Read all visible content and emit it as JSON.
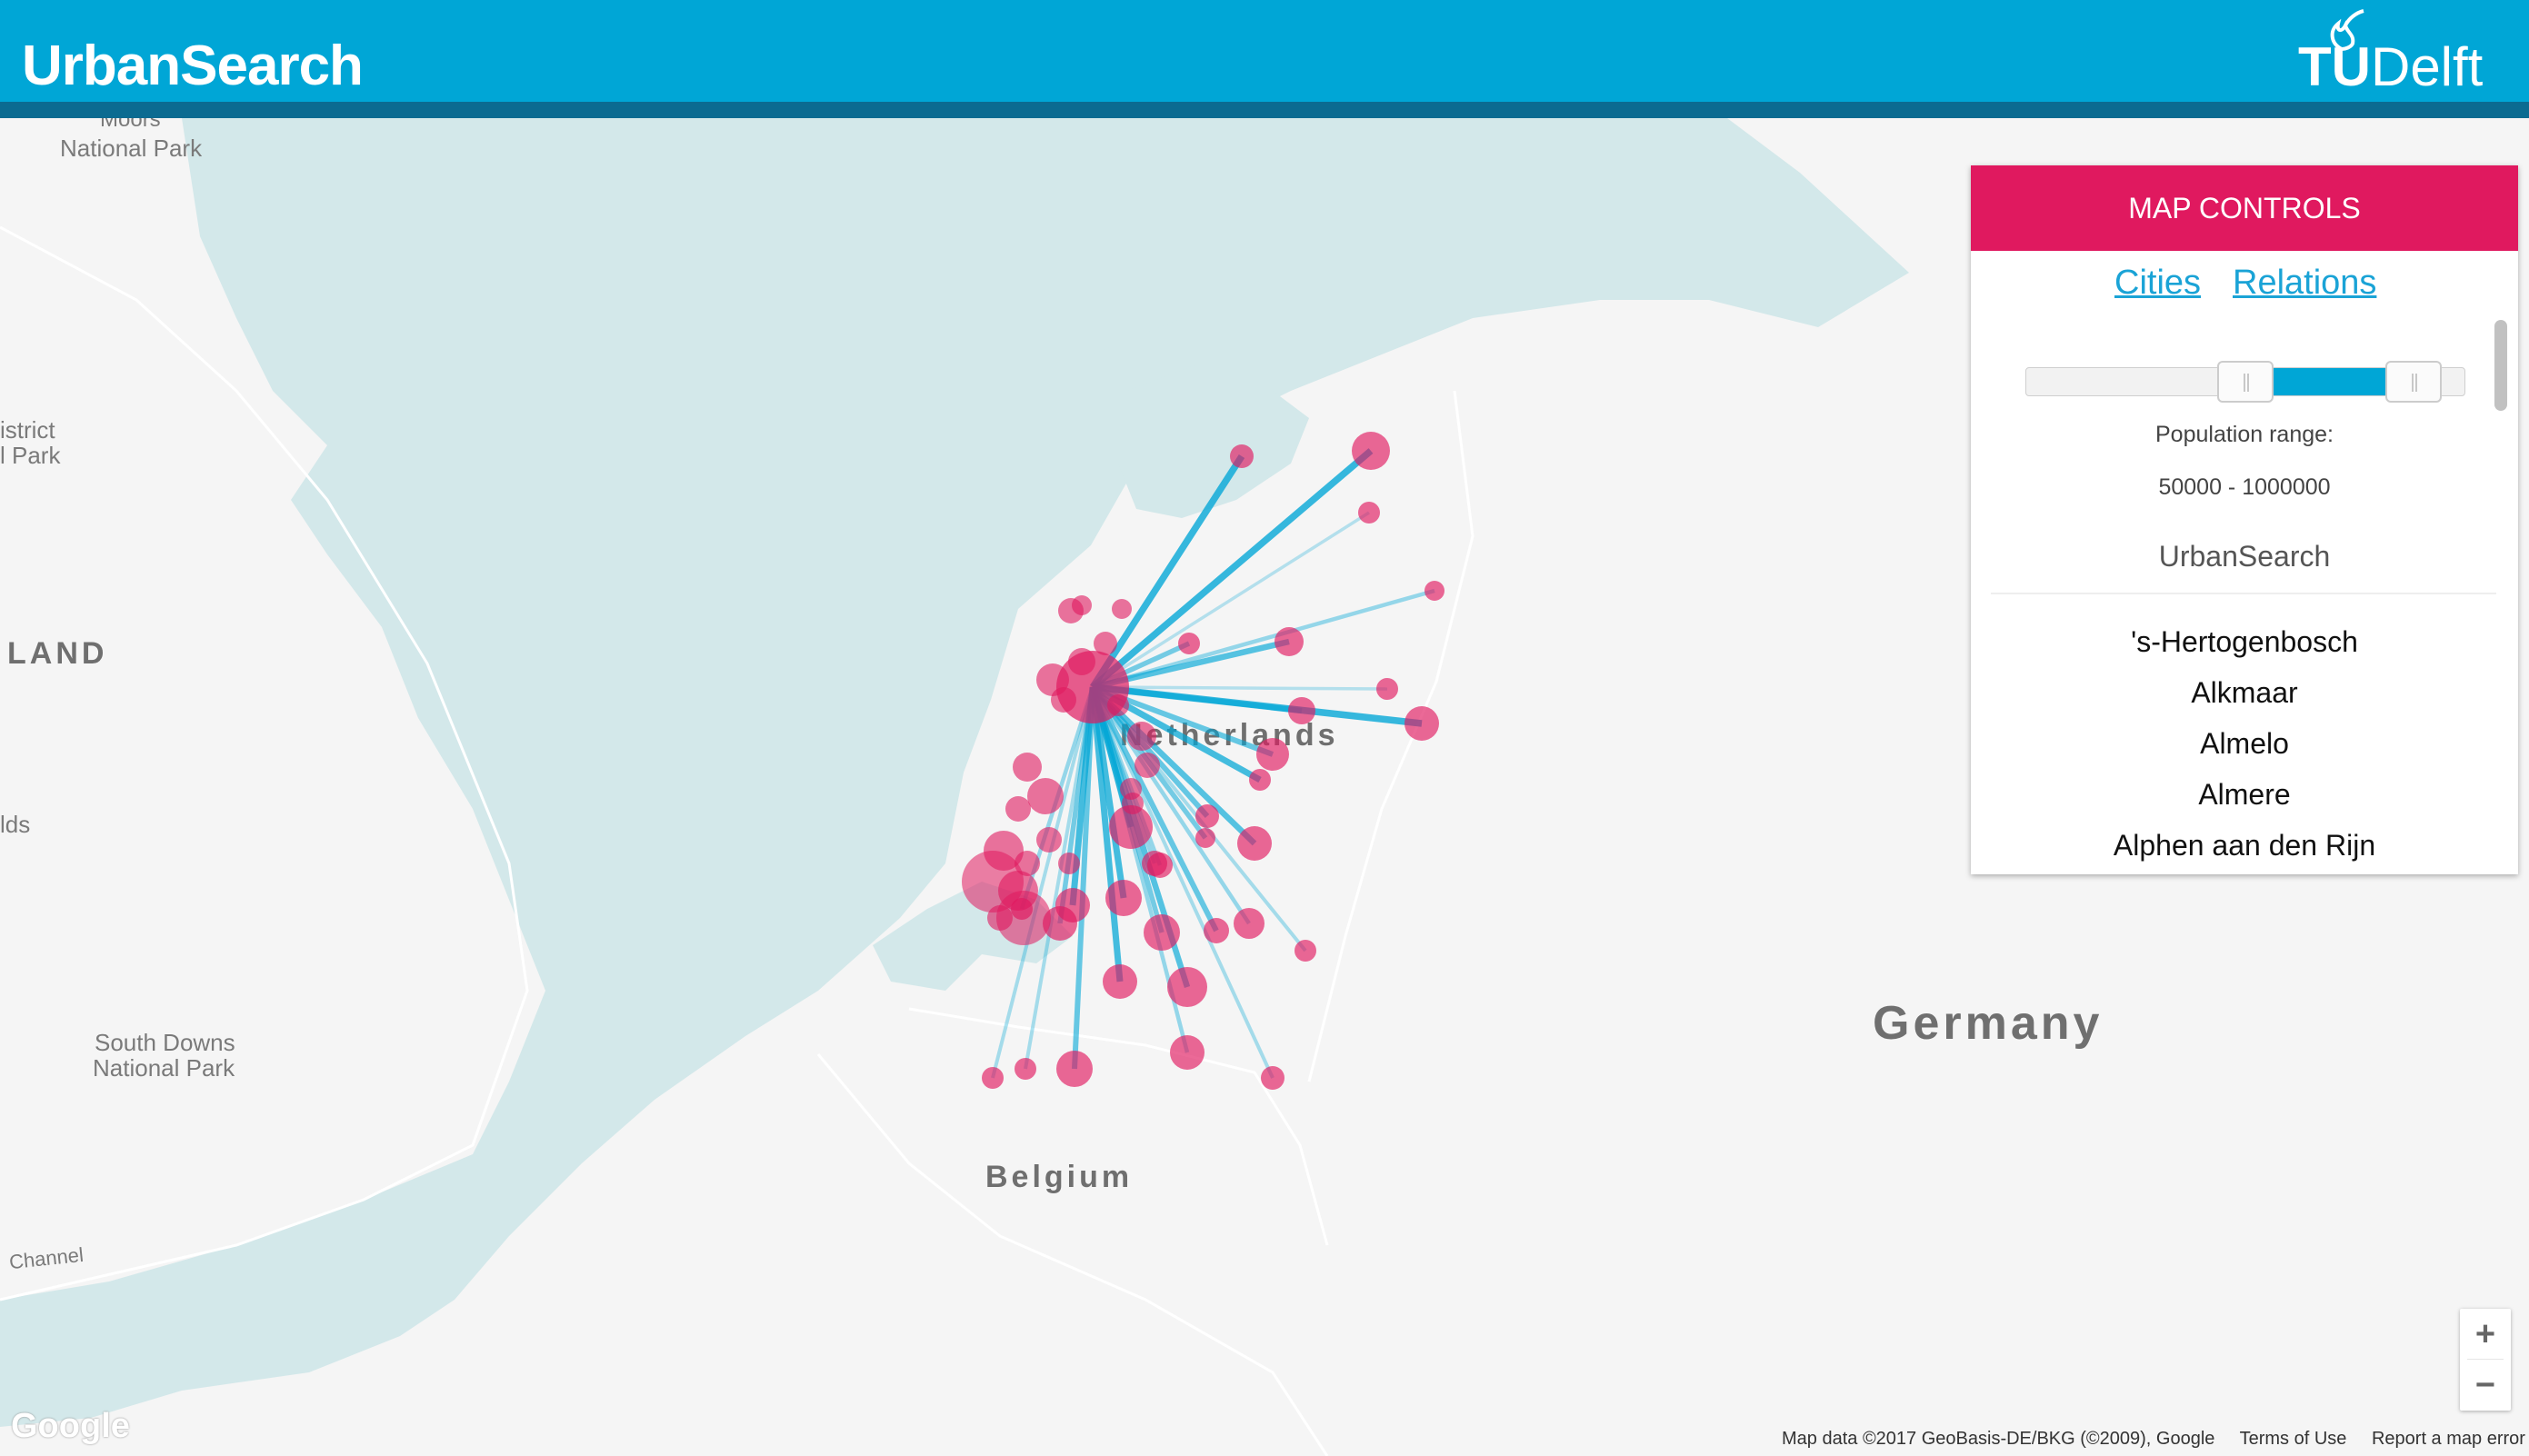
{
  "header": {
    "title": "UrbanSearch",
    "logo_left": "TU",
    "logo_right": "Delft",
    "background": "#00a6d6"
  },
  "map": {
    "labels": {
      "moors": "Moors",
      "national_park": "National Park",
      "district": "istrict",
      "l_park": "l Park",
      "land": "LAND",
      "lds": "lds",
      "south_downs": "South Downs",
      "south_downs_np": "National Park",
      "channel": "Channel",
      "netherlands": "Netherlands",
      "belgium": "Belgium",
      "germany": "Germany"
    },
    "colors": {
      "water": "#d3e8ea",
      "land": "#f5f5f5",
      "node": "#e0195f",
      "edge": "#00a6d6"
    }
  },
  "controls": {
    "header": "MAP CONTROLS",
    "tabs": {
      "cities": "Cities",
      "relations": "Relations"
    },
    "slider": {
      "min_fraction": 0.5,
      "max_fraction": 0.94
    },
    "range_label": "Population range:",
    "range_value": "50000 - 1000000",
    "section_title": "UrbanSearch",
    "cities": [
      "'s-Hertogenbosch",
      "Alkmaar",
      "Almelo",
      "Almere",
      "Alphen aan den Rijn"
    ]
  },
  "zoom": {
    "in": "+",
    "out": "−"
  },
  "footer": {
    "google": "Google",
    "map_data": "Map data ©2017 GeoBasis-DE/BKG (©2009), Google",
    "terms": "Terms of Use",
    "report": "Report a map error"
  }
}
